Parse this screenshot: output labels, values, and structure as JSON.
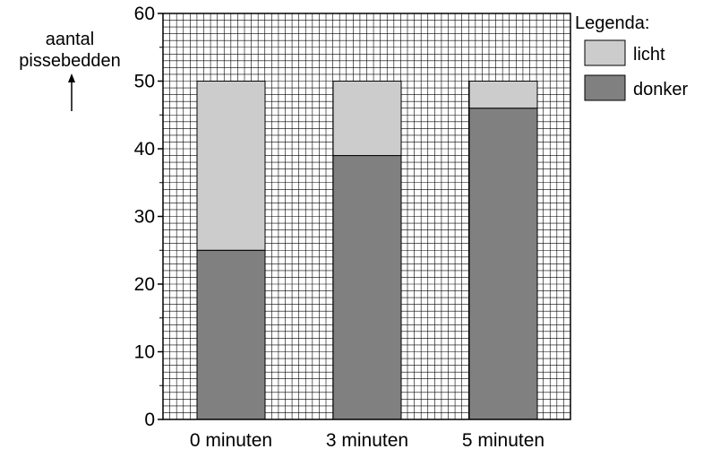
{
  "chart_data": {
    "type": "bar",
    "stacked": true,
    "categories": [
      "0 minuten",
      "3 minuten",
      "5 minuten"
    ],
    "series": [
      {
        "name": "donker",
        "values": [
          25,
          39,
          46
        ],
        "color": "#808080"
      },
      {
        "name": "licht",
        "values": [
          25,
          11,
          4
        ],
        "color": "#cccccc"
      }
    ],
    "ylabel_lines": [
      "aantal",
      "pissebedden"
    ],
    "ylim": [
      0,
      60
    ],
    "yticks": [
      0,
      10,
      20,
      30,
      40,
      50,
      60
    ],
    "grid": true,
    "legend": {
      "title": "Legenda:",
      "placement": "right",
      "items": [
        {
          "label": "licht",
          "color": "#cccccc"
        },
        {
          "label": "donker",
          "color": "#808080"
        }
      ]
    }
  }
}
